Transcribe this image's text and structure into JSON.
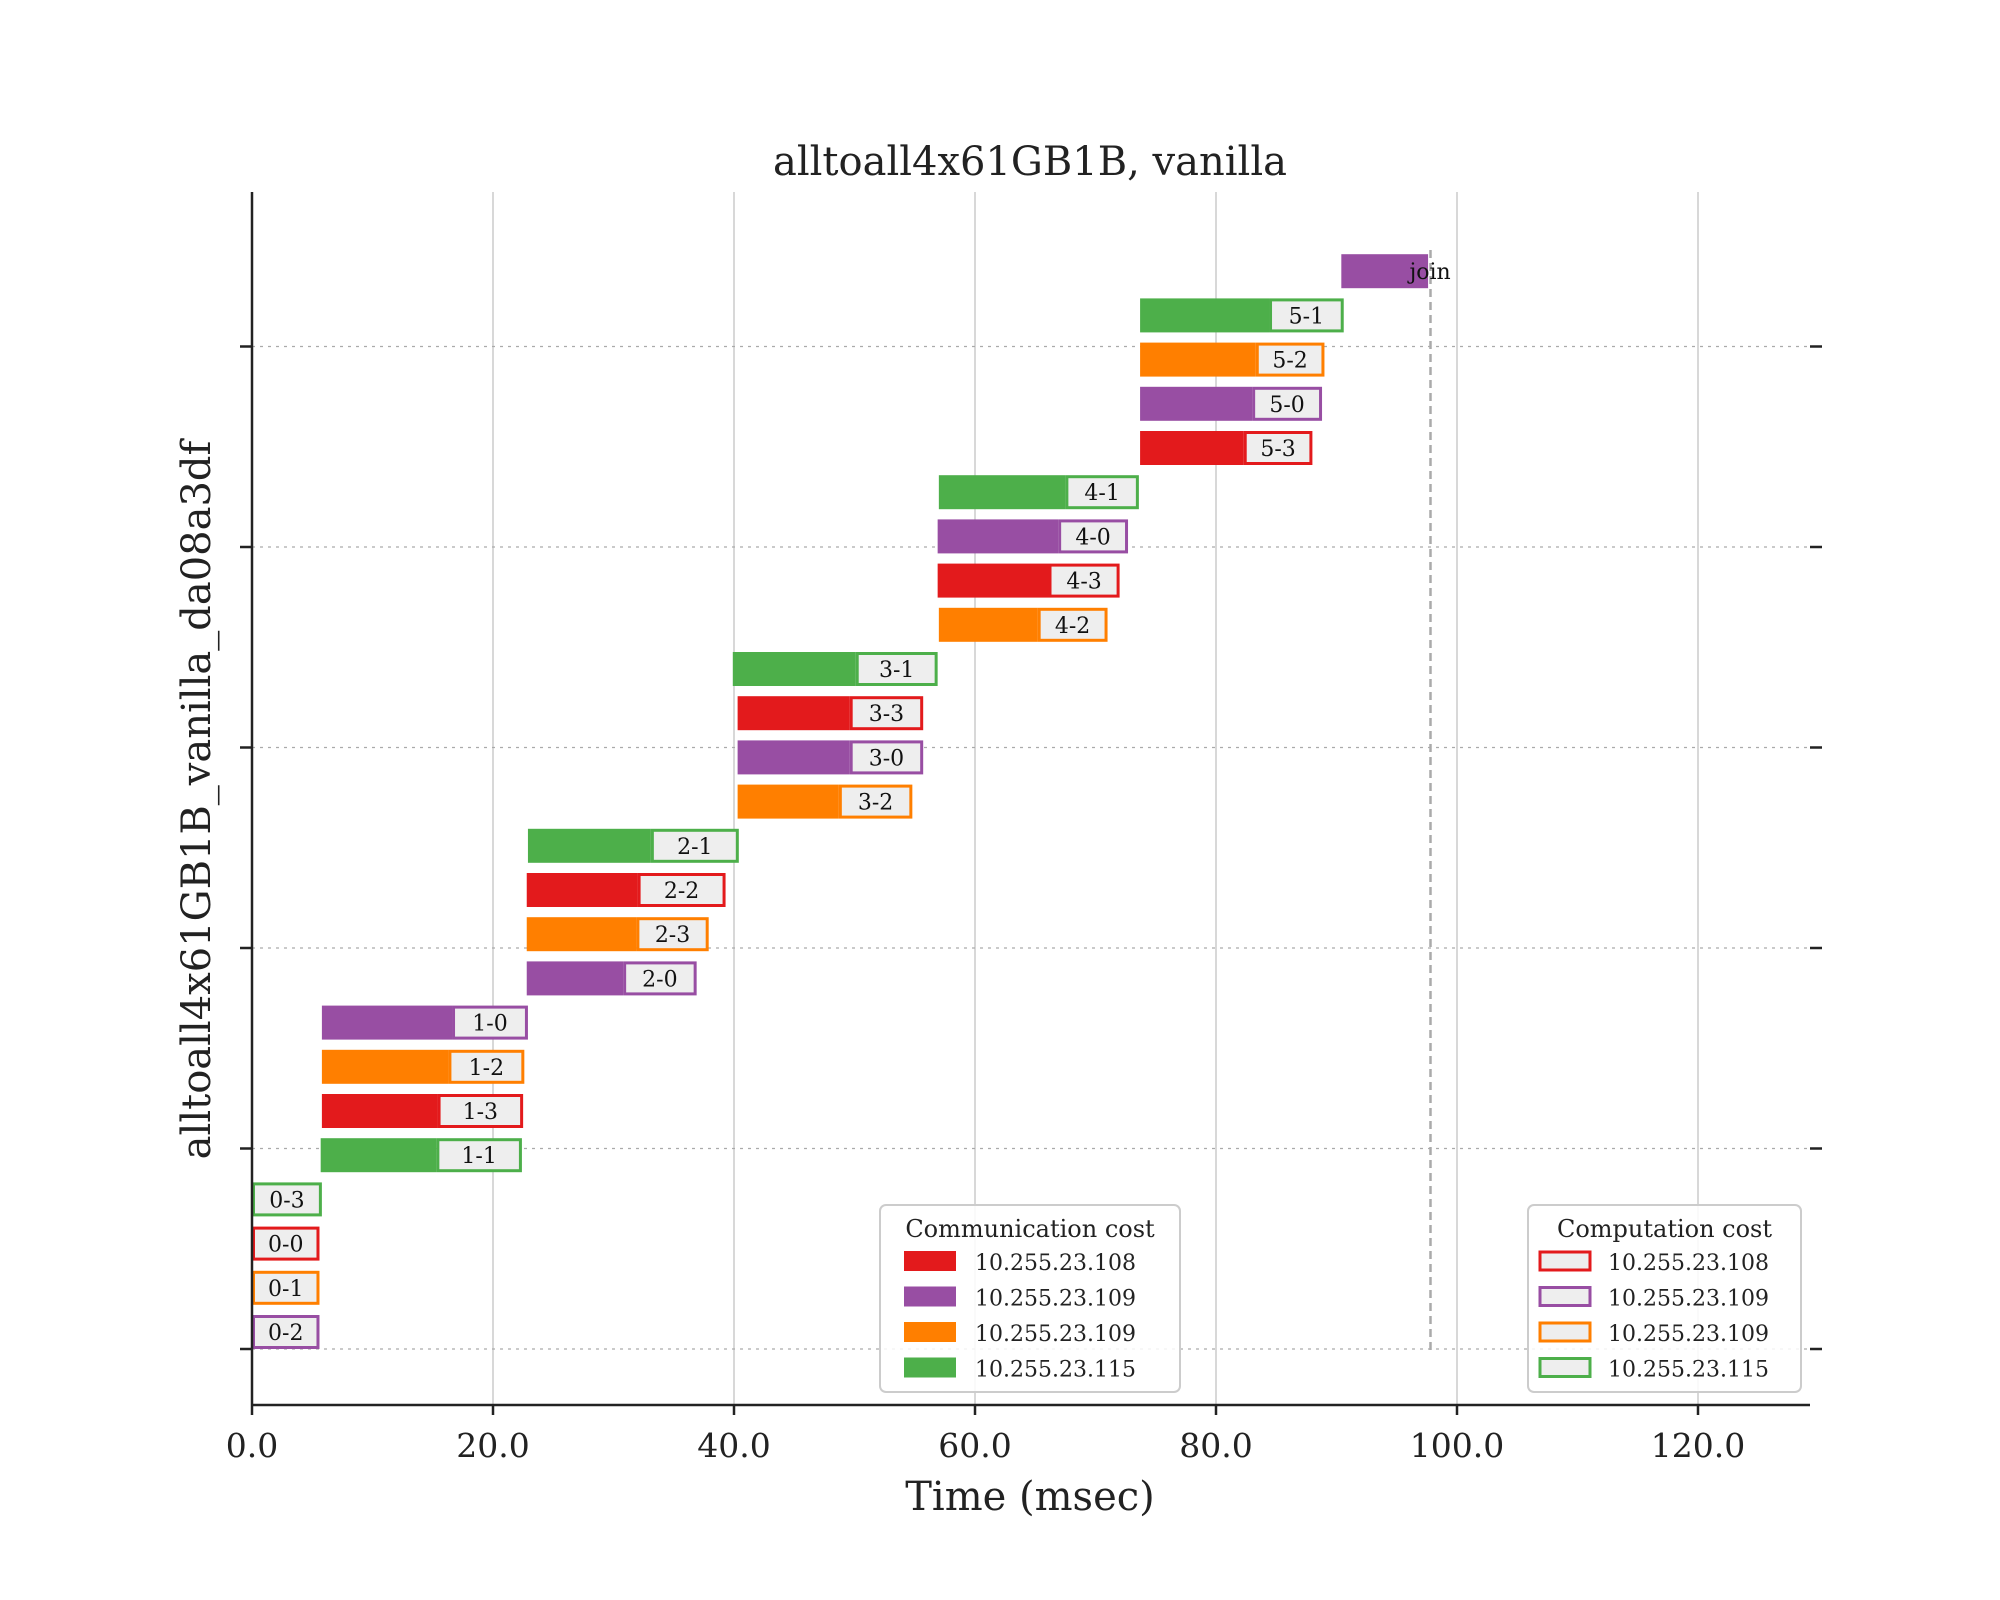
{
  "colors": {
    "10.255.23.108": "#e31a1c",
    "10.255.23.109a": "#984ea3",
    "10.255.23.109b": "#ff7f00",
    "10.255.23.115": "#4daf4a",
    "label_box": "#eeeeee",
    "grid": "#cccccc",
    "join_line": "#aaaaaa"
  },
  "chart_data": {
    "type": "gantt",
    "title": "alltoall4x61GB1B, vanilla",
    "xlabel": "Time (msec)",
    "ylabel": "alltoall4x61GB1B_vanilla_da08a3df",
    "xlim": [
      0,
      129
    ],
    "x_ticks": [
      0,
      20,
      40,
      60,
      80,
      100,
      120
    ],
    "x_tick_labels": [
      "0.0",
      "20.0",
      "40.0",
      "60.0",
      "80.0",
      "100.0",
      "120.0"
    ],
    "grid": {
      "x": "solid",
      "y": "dotted"
    },
    "join_marker_x": 97.8,
    "tasks": [
      {
        "label": "0-2",
        "row": 0,
        "color_key": "10.255.23.109a",
        "comm_start": 0.0,
        "comm_end": 0.0,
        "comp_end": 5.6
      },
      {
        "label": "0-1",
        "row": 1,
        "color_key": "10.255.23.109b",
        "comm_start": 0.0,
        "comm_end": 0.0,
        "comp_end": 5.6
      },
      {
        "label": "0-0",
        "row": 2,
        "color_key": "10.255.23.108",
        "comm_start": 0.0,
        "comm_end": 0.0,
        "comp_end": 5.6
      },
      {
        "label": "0-3",
        "row": 3,
        "color_key": "10.255.23.115",
        "comm_start": 0.0,
        "comm_end": 0.0,
        "comp_end": 5.8
      },
      {
        "label": "1-1",
        "row": 4,
        "color_key": "10.255.23.115",
        "comm_start": 5.7,
        "comm_end": 15.3,
        "comp_end": 22.4
      },
      {
        "label": "1-3",
        "row": 5,
        "color_key": "10.255.23.108",
        "comm_start": 5.8,
        "comm_end": 15.4,
        "comp_end": 22.5
      },
      {
        "label": "1-2",
        "row": 6,
        "color_key": "10.255.23.109b",
        "comm_start": 5.8,
        "comm_end": 16.3,
        "comp_end": 22.6
      },
      {
        "label": "1-0",
        "row": 7,
        "color_key": "10.255.23.109a",
        "comm_start": 5.8,
        "comm_end": 16.6,
        "comp_end": 22.9
      },
      {
        "label": "2-0",
        "row": 8,
        "color_key": "10.255.23.109a",
        "comm_start": 22.8,
        "comm_end": 30.8,
        "comp_end": 36.9
      },
      {
        "label": "2-3",
        "row": 9,
        "color_key": "10.255.23.109b",
        "comm_start": 22.8,
        "comm_end": 31.9,
        "comp_end": 37.9
      },
      {
        "label": "2-2",
        "row": 10,
        "color_key": "10.255.23.108",
        "comm_start": 22.8,
        "comm_end": 32.0,
        "comp_end": 39.3
      },
      {
        "label": "2-1",
        "row": 11,
        "color_key": "10.255.23.115",
        "comm_start": 22.9,
        "comm_end": 33.1,
        "comp_end": 40.4
      },
      {
        "label": "3-2",
        "row": 12,
        "color_key": "10.255.23.109b",
        "comm_start": 40.3,
        "comm_end": 48.7,
        "comp_end": 54.8
      },
      {
        "label": "3-0",
        "row": 13,
        "color_key": "10.255.23.109a",
        "comm_start": 40.3,
        "comm_end": 49.6,
        "comp_end": 55.7
      },
      {
        "label": "3-3",
        "row": 14,
        "color_key": "10.255.23.108",
        "comm_start": 40.3,
        "comm_end": 49.6,
        "comp_end": 55.7
      },
      {
        "label": "3-1",
        "row": 15,
        "color_key": "10.255.23.115",
        "comm_start": 39.9,
        "comm_end": 50.1,
        "comp_end": 56.9
      },
      {
        "label": "4-2",
        "row": 16,
        "color_key": "10.255.23.109b",
        "comm_start": 57.0,
        "comm_end": 65.2,
        "comp_end": 71.0
      },
      {
        "label": "4-3",
        "row": 17,
        "color_key": "10.255.23.108",
        "comm_start": 56.9,
        "comm_end": 66.1,
        "comp_end": 72.0
      },
      {
        "label": "4-0",
        "row": 18,
        "color_key": "10.255.23.109a",
        "comm_start": 56.9,
        "comm_end": 66.9,
        "comp_end": 72.7
      },
      {
        "label": "4-1",
        "row": 19,
        "color_key": "10.255.23.115",
        "comm_start": 57.0,
        "comm_end": 67.5,
        "comp_end": 73.6
      },
      {
        "label": "5-3",
        "row": 20,
        "color_key": "10.255.23.108",
        "comm_start": 73.7,
        "comm_end": 82.3,
        "comp_end": 88.0
      },
      {
        "label": "5-0",
        "row": 21,
        "color_key": "10.255.23.109a",
        "comm_start": 73.7,
        "comm_end": 83.0,
        "comp_end": 88.8
      },
      {
        "label": "5-2",
        "row": 22,
        "color_key": "10.255.23.109b",
        "comm_start": 73.7,
        "comm_end": 83.3,
        "comp_end": 89.0
      },
      {
        "label": "5-1",
        "row": 23,
        "color_key": "10.255.23.115",
        "comm_start": 73.7,
        "comm_end": 84.4,
        "comp_end": 90.6
      },
      {
        "label": "join",
        "row": 24,
        "color_key": "10.255.23.109a",
        "comm_start": 90.4,
        "comm_end": 97.6,
        "comp_end": 97.6
      }
    ],
    "legends": [
      {
        "title": "Communication cost",
        "style": "filled",
        "position": "bottom-center",
        "entries": [
          {
            "label": "10.255.23.108",
            "color_key": "10.255.23.108"
          },
          {
            "label": "10.255.23.109",
            "color_key": "10.255.23.109a"
          },
          {
            "label": "10.255.23.109",
            "color_key": "10.255.23.109b"
          },
          {
            "label": "10.255.23.115",
            "color_key": "10.255.23.115"
          }
        ]
      },
      {
        "title": "Computation cost",
        "style": "outlined",
        "position": "bottom-right",
        "entries": [
          {
            "label": "10.255.23.108",
            "color_key": "10.255.23.108"
          },
          {
            "label": "10.255.23.109",
            "color_key": "10.255.23.109a"
          },
          {
            "label": "10.255.23.109",
            "color_key": "10.255.23.109b"
          },
          {
            "label": "10.255.23.115",
            "color_key": "10.255.23.115"
          }
        ]
      }
    ]
  }
}
